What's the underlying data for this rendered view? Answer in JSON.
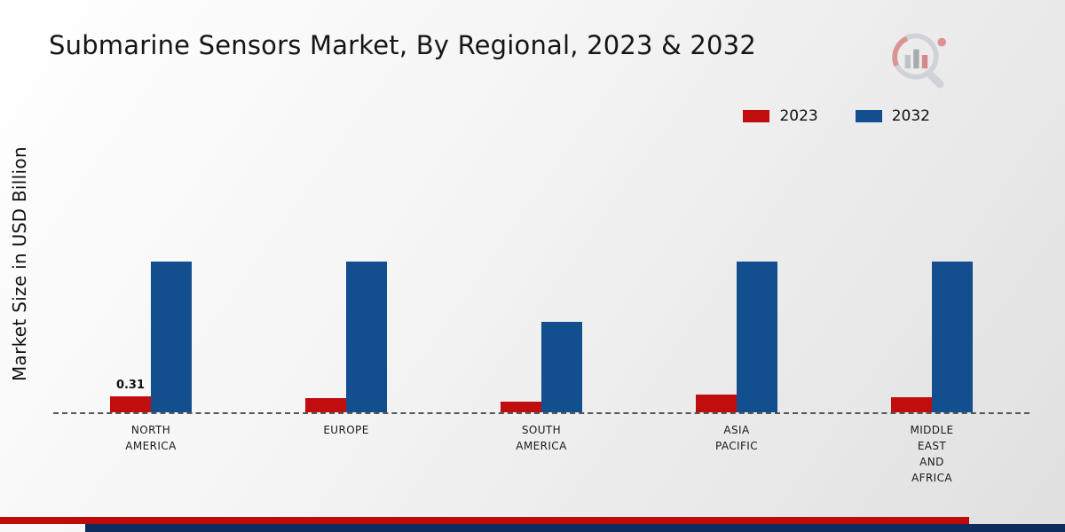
{
  "title": "Submarine Sensors Market, By Regional, 2023 & 2032",
  "y_axis_label": "Market Size in USD Billion",
  "legend": {
    "items": [
      {
        "label": "2023",
        "color": "#c00d0d"
      },
      {
        "label": "2032",
        "color": "#134f8f"
      }
    ]
  },
  "colors": {
    "series_2023": "#c00d0d",
    "series_2032": "#134f8f",
    "footer_red": "#c00b0b",
    "footer_navy": "#0e2c5e",
    "baseline": "#555555"
  },
  "chart_data": {
    "type": "bar",
    "title": "Submarine Sensors Market, By Regional, 2023 & 2032",
    "ylabel": "Market Size in USD Billion",
    "ylim": [
      0,
      3.5
    ],
    "grid": false,
    "baseline_style": "dashed",
    "legend_position": "top-right",
    "categories": [
      "North America",
      "Europe",
      "South America",
      "Asia Pacific",
      "Middle East and Africa"
    ],
    "category_label_lines": [
      [
        "NORTH",
        "AMERICA"
      ],
      [
        "EUROPE"
      ],
      [
        "SOUTH",
        "AMERICA"
      ],
      [
        "ASIA",
        "PACIFIC"
      ],
      [
        "MIDDLE",
        "EAST",
        "AND",
        "AFRICA"
      ]
    ],
    "series": [
      {
        "name": "2023",
        "color": "#c00d0d",
        "values": [
          0.31,
          0.28,
          0.22,
          0.35,
          0.3
        ]
      },
      {
        "name": "2032",
        "color": "#134f8f",
        "values": [
          3.0,
          3.0,
          1.8,
          3.0,
          3.0
        ]
      }
    ],
    "data_labels": [
      {
        "series": "2023",
        "category": "North America",
        "text": "0.31"
      }
    ]
  }
}
